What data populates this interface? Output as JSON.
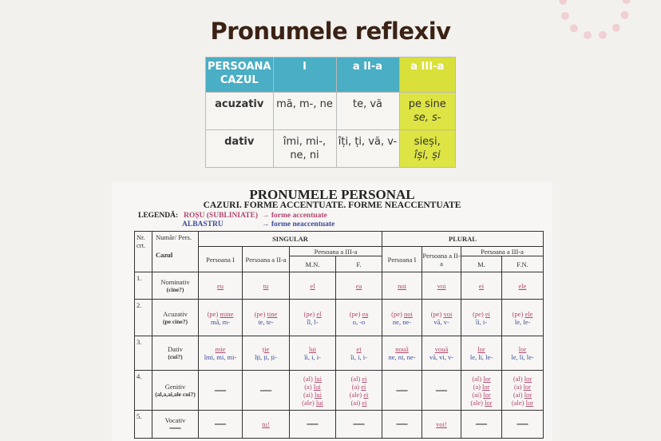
{
  "title": "Pronumele reflexiv",
  "reflexive_table": {
    "header": [
      "PERSOANA\nCAZUL",
      "I",
      "a II-a",
      "a III-a"
    ],
    "rows": [
      {
        "case": "acuzativ",
        "c1": "mă, m-, ne",
        "c2": "te, vă",
        "c3": "pe sine",
        "c3i": "se, s-"
      },
      {
        "case": "dativ",
        "c1": "îmi, mi-, ne, ni",
        "c2": "îți, ți, vă, v-",
        "c3": "sieși,",
        "c3i": "își, și"
      }
    ],
    "colors": {
      "header": "#4aaec4",
      "third": "#dde444"
    }
  },
  "personal": {
    "title": "PRONUMELE PERSONAL",
    "subtitle": "CAZURI. FORME ACCENTUATE. FORME NEACCENTUATE",
    "legend_label": "LEGENDĂ:",
    "legend_red": "ROȘU (SUBLINIATE)",
    "legend_red_desc": "→ forme accentuate",
    "legend_blue": "ALBASTRU",
    "legend_blue_desc": "→ forme neaccentuate",
    "colors": {
      "accent": "#b0456e",
      "unaccent": "#3a4a9a"
    },
    "headers": {
      "nr": "Nr. crt.",
      "numar": "Număr/ Pers.",
      "cazul": "Cazul",
      "singular": "SINGULAR",
      "plural": "PLURAL",
      "p1": "Persoana I",
      "p2": "Persoana a II-a",
      "p3": "Persoana a III-a",
      "mn": "M.N.",
      "f": "F.",
      "m": "M.",
      "fn": "F.N."
    },
    "rows": [
      {
        "nr": "1.",
        "case": "Nominativ",
        "q": "(cine?)",
        "cells": [
          [
            {
              "a": "eu"
            }
          ],
          [
            {
              "a": "tu"
            }
          ],
          [
            {
              "a": "el"
            }
          ],
          [
            {
              "a": "ea"
            }
          ],
          [
            {
              "a": "noi"
            }
          ],
          [
            {
              "a": "voi"
            }
          ],
          [
            {
              "a": "ei"
            }
          ],
          [
            {
              "a": "ele"
            }
          ]
        ]
      },
      {
        "nr": "2.",
        "case": "Acuzativ",
        "q": "(pe cine?)",
        "cells": [
          [
            {
              "p": "(pe) ",
              "a": "mine"
            },
            {
              "u": "mă, m-"
            }
          ],
          [
            {
              "p": "(pe) ",
              "a": "tine"
            },
            {
              "u": "te, te-"
            }
          ],
          [
            {
              "p": "(pe) ",
              "a": "el"
            },
            {
              "u": "îl, l-"
            }
          ],
          [
            {
              "p": "(pe) ",
              "a": "ea"
            },
            {
              "u": "o, -o"
            }
          ],
          [
            {
              "p": "(pe) ",
              "a": "noi"
            },
            {
              "u": "ne, ne-"
            }
          ],
          [
            {
              "p": "(pe) ",
              "a": "voi"
            },
            {
              "u": "vă, v-"
            }
          ],
          [
            {
              "p": "(pe) ",
              "a": "ei"
            },
            {
              "u": "îi, i-"
            }
          ],
          [
            {
              "p": "(pe) ",
              "a": "ele"
            },
            {
              "u": "le, le-"
            }
          ]
        ]
      },
      {
        "nr": "3.",
        "case": "Dativ",
        "q": "(cui?)",
        "cells": [
          [
            {
              "a": "mie"
            },
            {
              "u": "îmi, mi, mi-"
            }
          ],
          [
            {
              "a": "ție"
            },
            {
              "u": "îți, ți, ți-"
            }
          ],
          [
            {
              "a": "lui"
            },
            {
              "u": "îi, i, i-"
            }
          ],
          [
            {
              "a": "ei"
            },
            {
              "u": "îi, i, i-"
            }
          ],
          [
            {
              "a": "nouă"
            },
            {
              "u": "ne, ni, ne-"
            }
          ],
          [
            {
              "a": "vouă"
            },
            {
              "u": "vă, vi, v-"
            }
          ],
          [
            {
              "a": "lor"
            },
            {
              "u": "le, li, le-"
            }
          ],
          [
            {
              "a": "lor"
            },
            {
              "u": "le, li, le-"
            }
          ]
        ]
      },
      {
        "nr": "4.",
        "case": "Genitiv",
        "q": "(al,a,ai,ale cui?)",
        "cells": [
          [
            {
              "d": "—"
            }
          ],
          [
            {
              "d": "—"
            }
          ],
          [
            {
              "p": "(al) ",
              "a": "lui"
            },
            {
              "p": "(a) ",
              "a": "lui"
            },
            {
              "p": "(ai) ",
              "a": "lui"
            },
            {
              "p": "(ale) ",
              "a": "lui"
            }
          ],
          [
            {
              "p": "(al) ",
              "a": "ei"
            },
            {
              "p": "(a) ",
              "a": "ei"
            },
            {
              "p": "(ale) ",
              "a": "ei"
            },
            {
              "p": "(ai) ",
              "a": "ei"
            }
          ],
          [
            {
              "d": "—"
            }
          ],
          [
            {
              "d": "—"
            }
          ],
          [
            {
              "p": "(al) ",
              "a": "lor"
            },
            {
              "p": "(a) ",
              "a": "lor"
            },
            {
              "p": "(ai) ",
              "a": "lor"
            },
            {
              "p": "(ale) ",
              "a": "lor"
            }
          ],
          [
            {
              "p": "(al) ",
              "a": "lor"
            },
            {
              "p": "(a) ",
              "a": "lor"
            },
            {
              "p": "(ai) ",
              "a": "lor"
            },
            {
              "p": "(ale) ",
              "a": "lor"
            }
          ]
        ]
      },
      {
        "nr": "5.",
        "case": "Vocativ",
        "q": "—",
        "cells": [
          [
            {
              "d": "—"
            }
          ],
          [
            {
              "a": "tu!"
            }
          ],
          [
            {
              "d": "—"
            }
          ],
          [
            {
              "d": "—"
            }
          ],
          [
            {
              "d": "—"
            }
          ],
          [
            {
              "a": "voi!"
            }
          ],
          [
            {
              "d": "—"
            }
          ],
          [
            {
              "d": "—"
            }
          ]
        ]
      }
    ]
  }
}
